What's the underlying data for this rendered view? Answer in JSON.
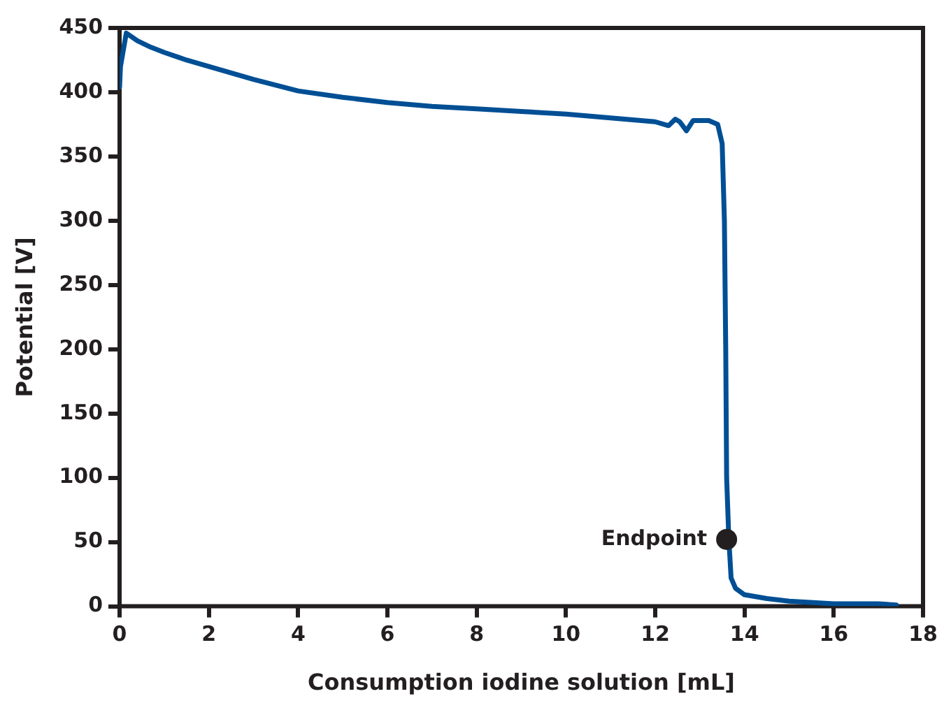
{
  "chart_data": {
    "type": "line",
    "xlabel": "Consumption iodine solution [mL]",
    "ylabel": "Potential [V]",
    "xlim": [
      0,
      18
    ],
    "xticks": [
      0,
      2,
      4,
      6,
      8,
      10,
      12,
      14,
      16,
      18
    ],
    "ylim": [
      0,
      450
    ],
    "yticks": [
      0,
      50,
      100,
      150,
      200,
      250,
      300,
      350,
      400,
      450
    ],
    "grid": false,
    "legend": false,
    "series": [
      {
        "color": "#004f95",
        "marker": "none",
        "line_style": "solid",
        "x": [
          0,
          0.02,
          0.15,
          0.4,
          0.7,
          1,
          1.5,
          2,
          3,
          4,
          5,
          6,
          7,
          8,
          9,
          10,
          11,
          12,
          12.3,
          12.45,
          12.55,
          12.7,
          12.85,
          13,
          13.2,
          13.4,
          13.5,
          13.55,
          13.58,
          13.6,
          13.65,
          13.7,
          13.8,
          14,
          14.5,
          15,
          16,
          17,
          17.4
        ],
        "values": [
          404,
          420,
          446,
          440,
          435,
          431,
          425,
          420,
          410,
          401,
          396,
          392,
          389,
          387,
          385,
          383,
          380,
          377,
          374,
          379,
          377,
          370,
          378,
          378,
          378,
          375,
          360,
          300,
          200,
          100,
          52,
          22,
          14,
          9,
          6,
          4,
          2,
          2,
          1
        ]
      },
      {
        "type": "scatter",
        "color": "#231f20",
        "marker": "circle",
        "x": [
          13.6
        ],
        "values": [
          52
        ]
      }
    ],
    "annotations": [
      {
        "text": "Endpoint",
        "x": 13.6,
        "y": 52
      }
    ]
  }
}
